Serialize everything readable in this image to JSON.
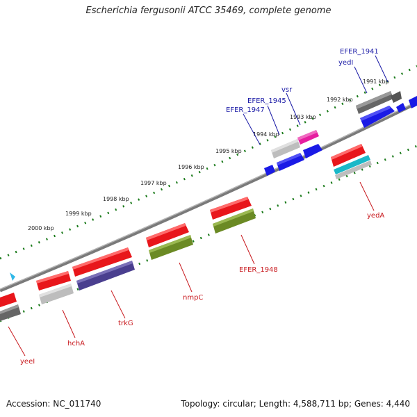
{
  "title": "Escherichia fergusonii ATCC 35469, complete genome",
  "footer": {
    "accession": "Accession: NC_011740",
    "summary": "Topology: circular; Length: 4,588,711 bp; Genes: 4,440"
  },
  "ticks": [
    "2000 kbp",
    "1999 kbp",
    "1998 kbp",
    "1997 kbp",
    "1996 kbp",
    "1995 kbp",
    "1994 kbp",
    "1993 kbp",
    "1992 kbp",
    "1991 kbp"
  ],
  "gene_labels": {
    "forward": [
      "EFER_1941",
      "yedI",
      "EFER_1945",
      "vsr",
      "EFER_1947"
    ],
    "reverse": [
      "yeeI",
      "hchA",
      "trkG",
      "nmpC",
      "EFER_1948",
      "yedA"
    ]
  },
  "colors": {
    "forward_label": "#1a1aa6",
    "reverse_label": "#c8191e",
    "backbone": "#7a7a7a",
    "tick_dots": "#1a7a1a",
    "red": "#e8161b",
    "blue": "#1a1ae6",
    "gray": "#bdbdbd",
    "dark_gray": "#666666",
    "magenta": "#e61ea0",
    "olive": "#6b8a24",
    "slate": "#4a3f8f",
    "teal": "#1ab8c8",
    "cyan_marker": "#2fb8e8"
  }
}
